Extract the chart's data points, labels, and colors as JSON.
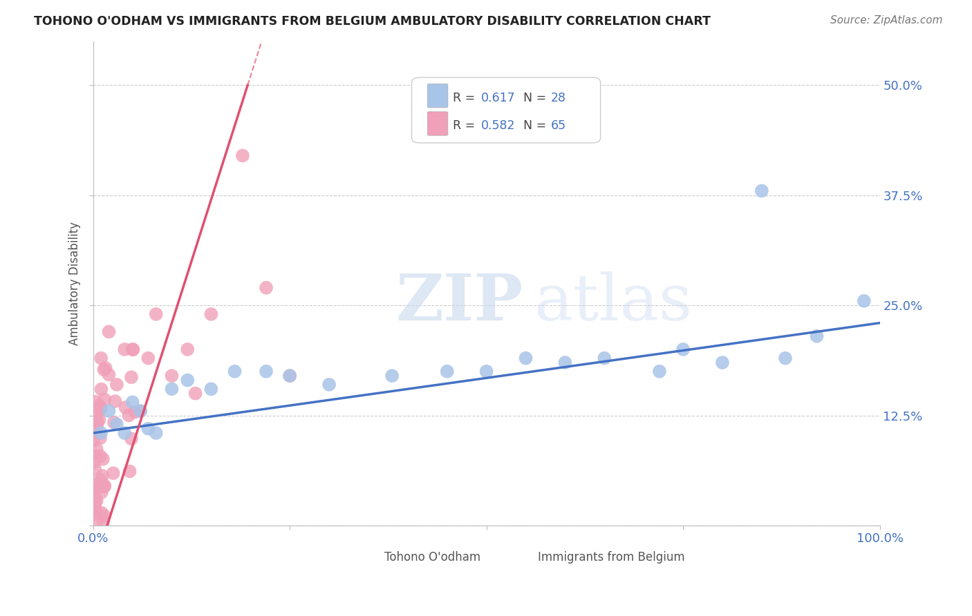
{
  "title": "TOHONO O'ODHAM VS IMMIGRANTS FROM BELGIUM AMBULATORY DISABILITY CORRELATION CHART",
  "source": "Source: ZipAtlas.com",
  "ylabel": "Ambulatory Disability",
  "watermark_zip": "ZIP",
  "watermark_atlas": "atlas",
  "xlim": [
    0.0,
    1.0
  ],
  "ylim": [
    0.0,
    0.55
  ],
  "xticks": [
    0.0,
    0.25,
    0.5,
    0.75,
    1.0
  ],
  "xtick_labels": [
    "0.0%",
    "",
    "",
    "",
    "100.0%"
  ],
  "yticks": [
    0.125,
    0.25,
    0.375,
    0.5
  ],
  "ytick_labels": [
    "12.5%",
    "25.0%",
    "37.5%",
    "50.0%"
  ],
  "legend1_label": "Tohono O'odham",
  "legend2_label": "Immigrants from Belgium",
  "R1": "0.617",
  "N1": "28",
  "R2": "0.582",
  "N2": "65",
  "color1": "#a8c4e8",
  "color2": "#f0a0b8",
  "trendline1_color": "#4472c4",
  "trendline2_color": "#e05070",
  "trendline1_x0": 0.0,
  "trendline1_y0": 0.105,
  "trendline1_x1": 1.0,
  "trendline1_y1": 0.23,
  "trendline2_slope": 2.8,
  "trendline2_intercept": -0.05,
  "background_color": "#ffffff",
  "grid_color": "#cccccc",
  "tick_color": "#4472c4",
  "title_color": "#222222",
  "label_color": "#555555"
}
